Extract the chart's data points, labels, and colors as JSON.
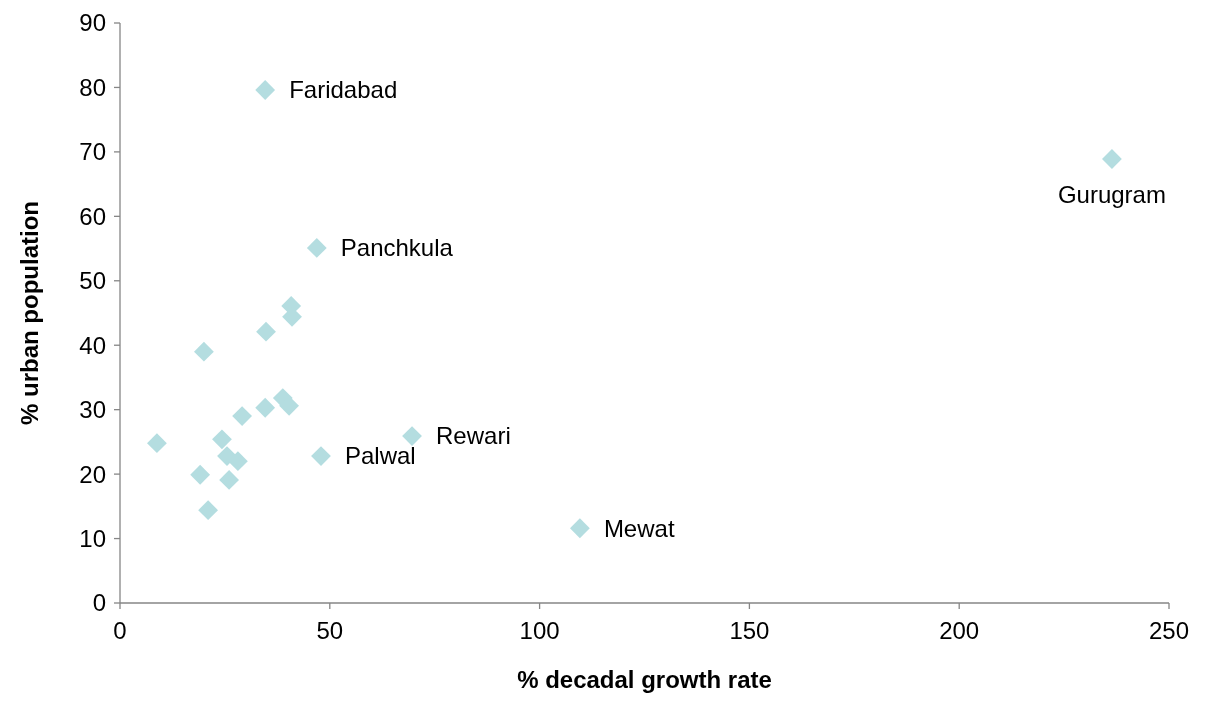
{
  "chart_data": {
    "type": "scatter",
    "xlabel": "% decadal growth rate",
    "ylabel": "% urban population",
    "xlim": [
      0,
      250
    ],
    "xticks": [
      0,
      50,
      100,
      150,
      200,
      250
    ],
    "ylim": [
      0,
      90
    ],
    "yticks": [
      0,
      10,
      20,
      30,
      40,
      50,
      60,
      70,
      80,
      90
    ],
    "grid": false,
    "marker": "diamond",
    "series": [
      {
        "color": "#b4dde0",
        "x": [
          34.6,
          236.4,
          46.9,
          40.8,
          41.0,
          34.8,
          20.0,
          38.8,
          40.3,
          34.6,
          29.1,
          8.8,
          24.3,
          69.6,
          25.5,
          28.1,
          47.9,
          19.1,
          26.0,
          21.0,
          109.6
        ],
        "values": [
          79.6,
          68.9,
          55.1,
          46.1,
          44.4,
          42.1,
          39.0,
          31.8,
          30.6,
          30.3,
          29.0,
          24.8,
          25.4,
          25.9,
          22.8,
          22.0,
          22.8,
          19.9,
          19.1,
          14.4,
          11.6
        ]
      }
    ],
    "annotations": [
      {
        "text": "Faridabad",
        "x": 34.6,
        "y": 79.6
      },
      {
        "text": "Gurugram",
        "x": 236.4,
        "y": 68.9
      },
      {
        "text": "Panchkula",
        "x": 46.9,
        "y": 55.1
      },
      {
        "text": "Rewari",
        "x": 69.6,
        "y": 25.9
      },
      {
        "text": "Palwal",
        "x": 47.9,
        "y": 22.8
      },
      {
        "text": "Mewat",
        "x": 109.6,
        "y": 11.6
      }
    ]
  }
}
